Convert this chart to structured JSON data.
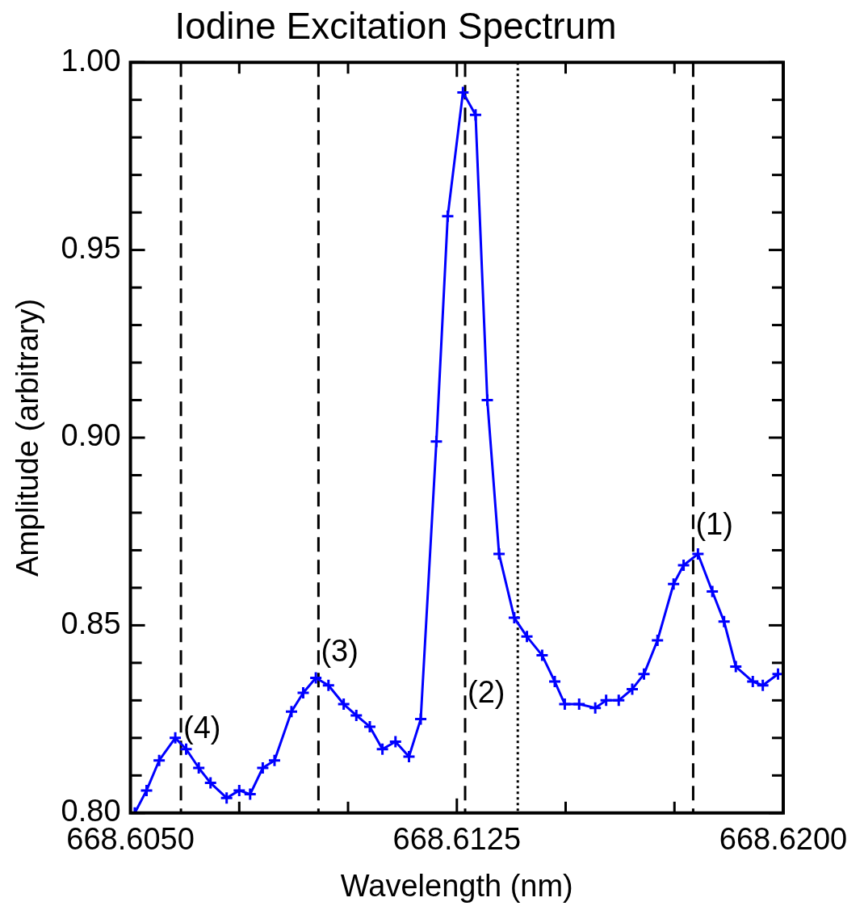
{
  "chart_data": {
    "type": "line",
    "title": "Iodine Excitation Spectrum",
    "xlabel": "Wavelength (nm)",
    "ylabel": "Amplitude (arbitrary)",
    "xlim": [
      668.605,
      668.62
    ],
    "xticks": [
      {
        "value": 668.605,
        "label": "668.6050"
      },
      {
        "value": 668.6075,
        "label": null
      },
      {
        "value": 668.61,
        "label": null
      },
      {
        "value": 668.6125,
        "label": "668.6125"
      },
      {
        "value": 668.615,
        "label": null
      },
      {
        "value": 668.6175,
        "label": null
      },
      {
        "value": 668.62,
        "label": "668.6200"
      }
    ],
    "ylim": [
      0.8,
      1.0
    ],
    "yticks": [
      {
        "value": 0.8,
        "label": "0.80"
      },
      {
        "value": 0.81,
        "label": null
      },
      {
        "value": 0.82,
        "label": null
      },
      {
        "value": 0.83,
        "label": null
      },
      {
        "value": 0.84,
        "label": null
      },
      {
        "value": 0.85,
        "label": "0.85"
      },
      {
        "value": 0.86,
        "label": null
      },
      {
        "value": 0.87,
        "label": null
      },
      {
        "value": 0.88,
        "label": null
      },
      {
        "value": 0.89,
        "label": null
      },
      {
        "value": 0.9,
        "label": "0.90"
      },
      {
        "value": 0.91,
        "label": null
      },
      {
        "value": 0.92,
        "label": null
      },
      {
        "value": 0.93,
        "label": null
      },
      {
        "value": 0.94,
        "label": null
      },
      {
        "value": 0.95,
        "label": "0.95"
      },
      {
        "value": 0.96,
        "label": null
      },
      {
        "value": 0.97,
        "label": null
      },
      {
        "value": 0.98,
        "label": null
      },
      {
        "value": 0.99,
        "label": null
      },
      {
        "value": 1.0,
        "label": "1.00"
      }
    ],
    "grid": false,
    "legend": false,
    "marker": "cross",
    "line_style": "solid",
    "series": [
      {
        "color": "#0000ff",
        "x": [
          668.6051,
          668.60537,
          668.60566,
          668.60603,
          668.60628,
          668.60657,
          668.60684,
          668.60721,
          668.6075,
          668.60775,
          668.60804,
          668.60831,
          668.6087,
          668.60897,
          668.60926,
          668.60955,
          668.6099,
          668.61019,
          668.6105,
          668.61079,
          668.61109,
          668.6114,
          668.61167,
          668.61203,
          668.61229,
          668.61264,
          668.61293,
          668.6132,
          668.61347,
          668.61382,
          668.61411,
          668.61446,
          668.61475,
          668.61498,
          668.61531,
          668.61568,
          668.61593,
          668.61622,
          668.61653,
          668.6168,
          668.61711,
          668.61748,
          668.61771,
          668.61804,
          668.61837,
          668.61864,
          668.61891,
          668.6193,
          668.61953,
          668.61988
        ],
        "values": [
          0.8,
          0.806,
          0.814,
          0.82,
          0.817,
          0.812,
          0.808,
          0.804,
          0.806,
          0.805,
          0.812,
          0.814,
          0.827,
          0.832,
          0.836,
          0.834,
          0.829,
          0.826,
          0.823,
          0.817,
          0.819,
          0.815,
          0.825,
          0.899,
          0.959,
          0.992,
          0.986,
          0.91,
          0.869,
          0.852,
          0.847,
          0.842,
          0.835,
          0.829,
          0.829,
          0.828,
          0.83,
          0.83,
          0.833,
          0.837,
          0.846,
          0.861,
          0.866,
          0.869,
          0.859,
          0.851,
          0.839,
          0.835,
          0.834,
          0.837
        ]
      }
    ],
    "ref_lines": [
      {
        "axis": "x",
        "value": 668.60616,
        "line_style": "dashed",
        "color": "#000000"
      },
      {
        "axis": "x",
        "value": 668.60932,
        "line_style": "dashed",
        "color": "#000000"
      },
      {
        "axis": "x",
        "value": 668.61269,
        "line_style": "dashed",
        "color": "#000000"
      },
      {
        "axis": "x",
        "value": 668.6139,
        "line_style": "dotted",
        "color": "#000000"
      },
      {
        "axis": "x",
        "value": 668.61793,
        "line_style": "dashed",
        "color": "#000000"
      }
    ],
    "annotations": [
      {
        "text": "(1)",
        "x": 668.61793,
        "y": 0.8765
      },
      {
        "text": "(2)",
        "x": 668.61269,
        "y": 0.8317
      },
      {
        "text": "(3)",
        "x": 668.60932,
        "y": 0.8426
      },
      {
        "text": "(4)",
        "x": 668.60616,
        "y": 0.8223
      }
    ]
  }
}
